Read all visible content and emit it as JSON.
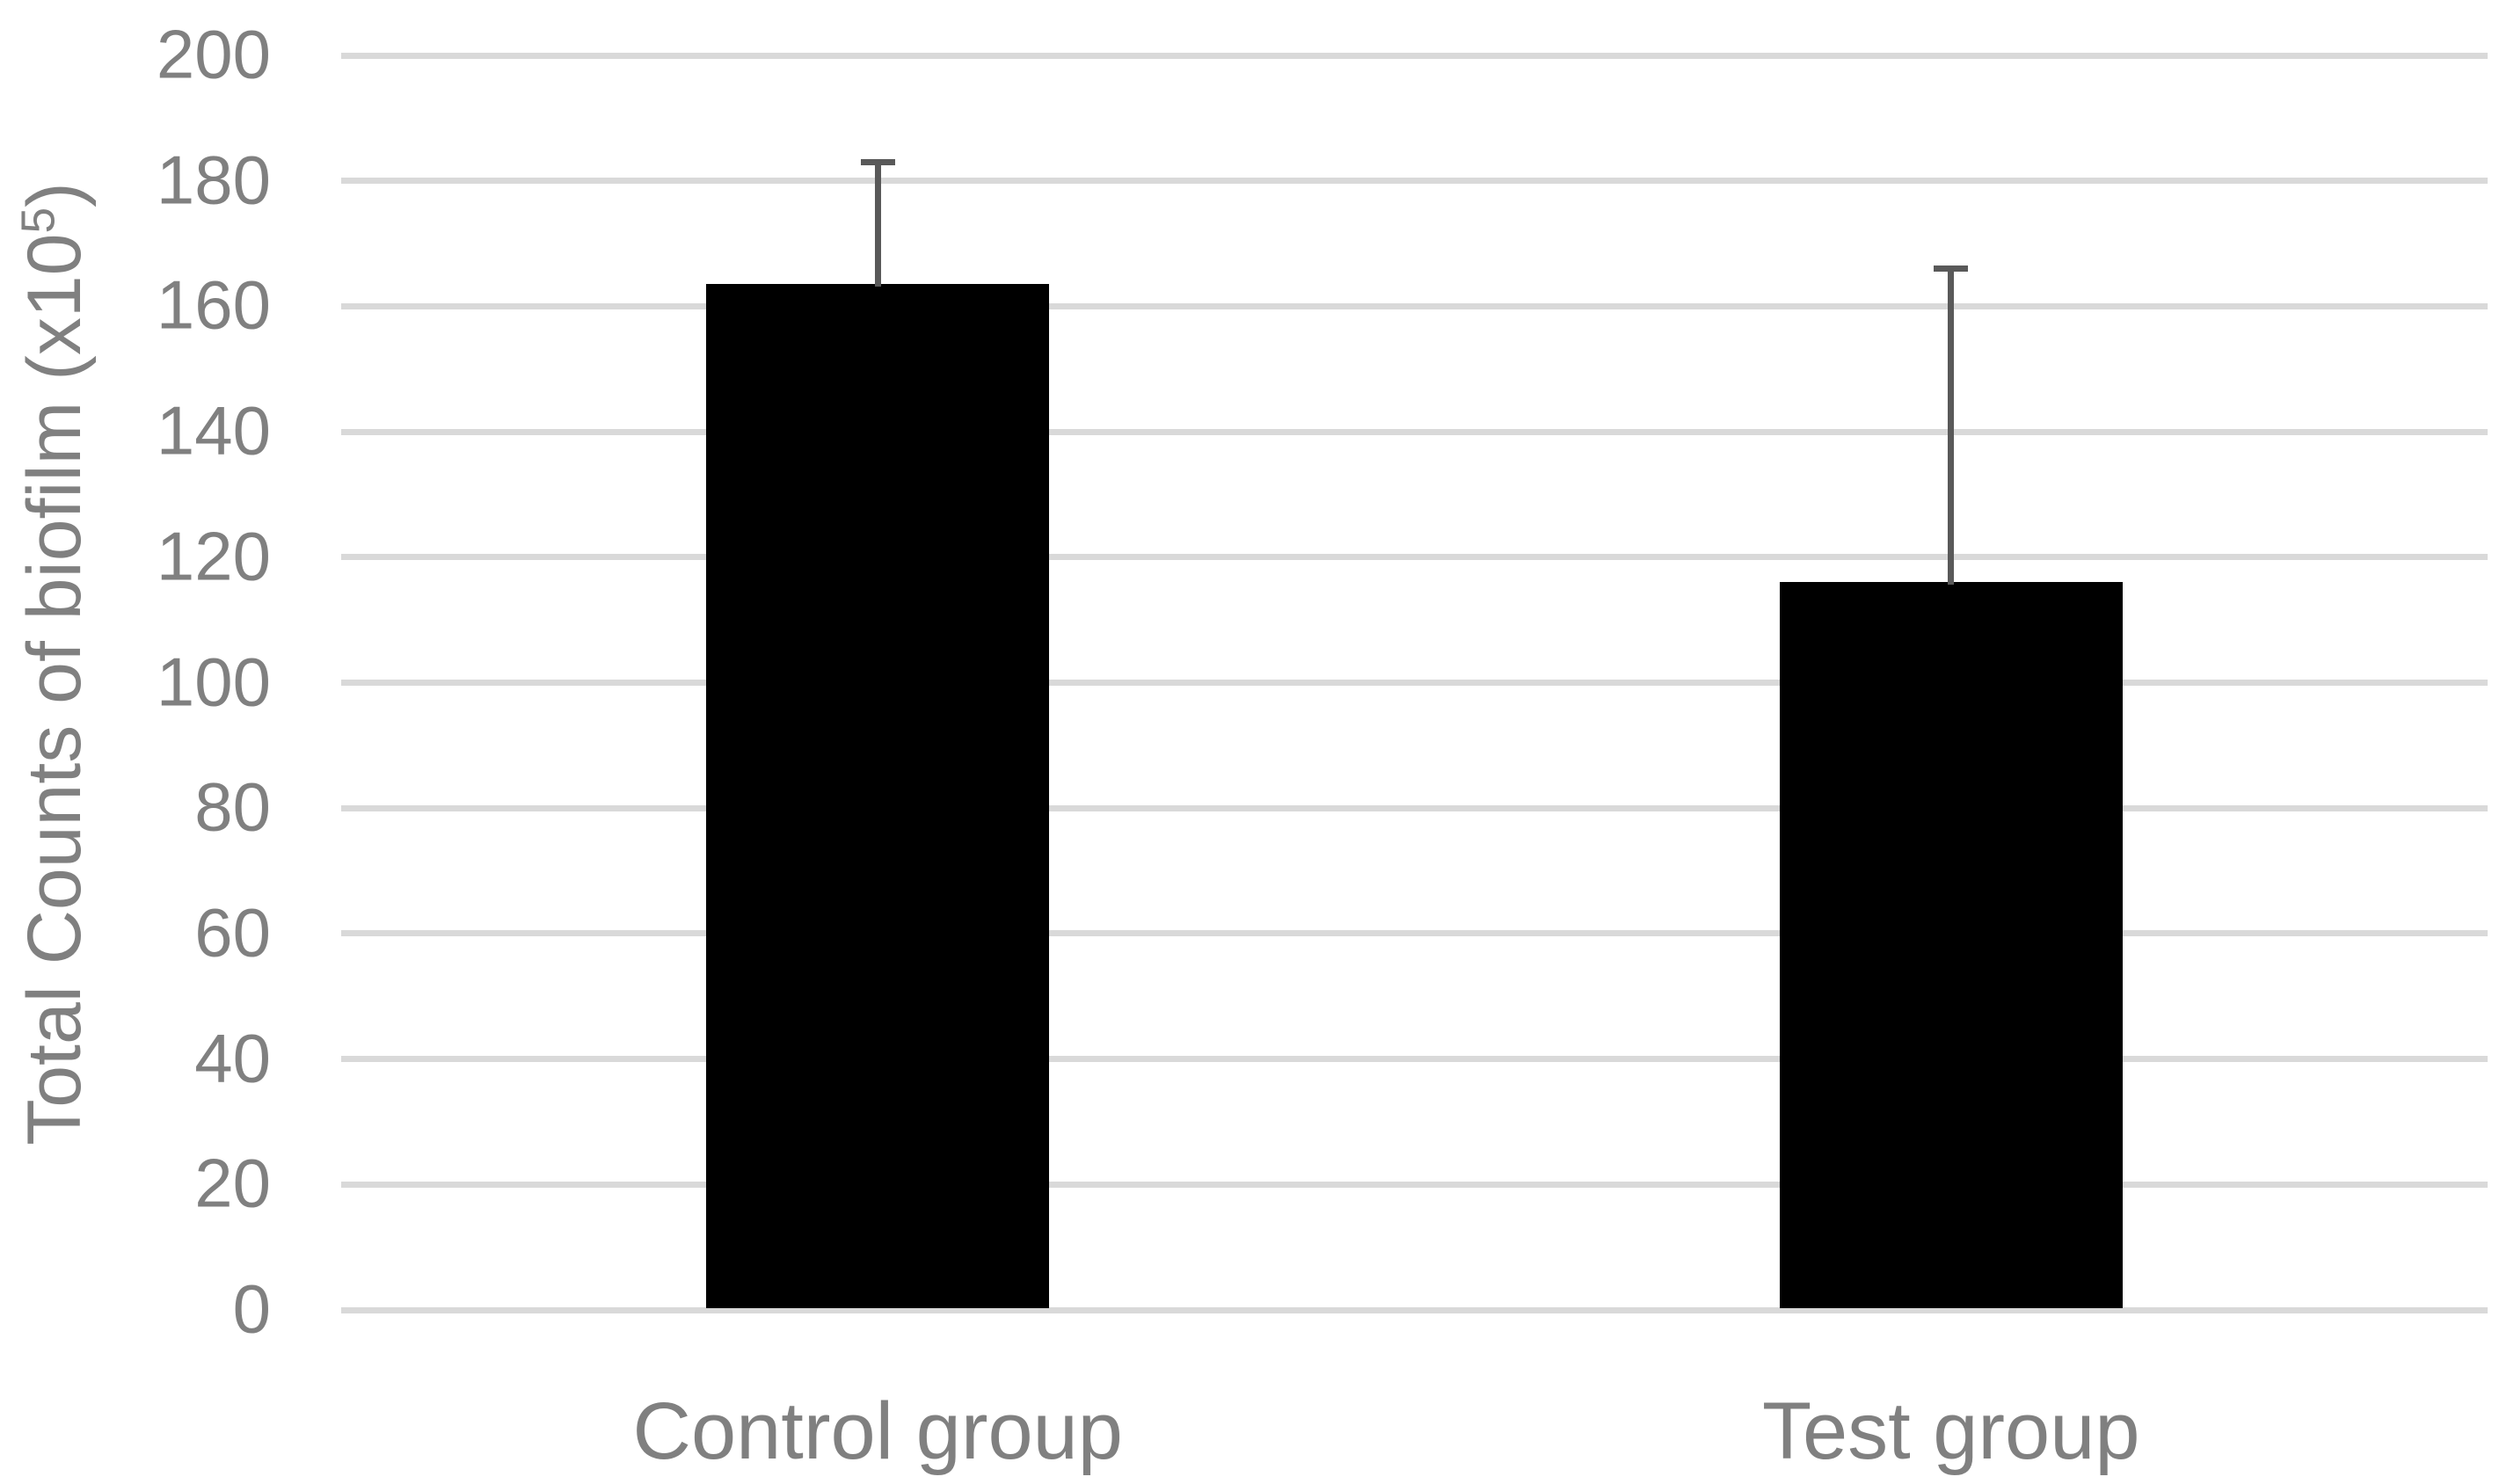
{
  "chart_data": {
    "type": "bar",
    "title": "",
    "categories": [
      "Control group",
      "Test group"
    ],
    "series": [
      {
        "name": "Total Counts of biofilm",
        "values": [
          163.5,
          116
        ],
        "error_plus": [
          19,
          49.5
        ],
        "error_bar_tops": [
          182.5,
          165.5
        ]
      }
    ],
    "xlabel": "",
    "ylabel": "Total Counts of biofilm (x10⁵)",
    "ylabel_parts": {
      "prefix": "Total Counts of biofilm (x10",
      "superscript": "5",
      "suffix": ")"
    },
    "yticks": [
      0,
      20,
      40,
      60,
      80,
      100,
      120,
      140,
      160,
      180,
      200
    ],
    "ylim": [
      0,
      200
    ],
    "grid": "horizontal gridlines on",
    "legend_position": "none",
    "colors": {
      "bar": "#000000",
      "error_bar": "#595959",
      "gridline": "#d9d9d9",
      "axis_line": "#d9d9d9",
      "text": "#808080",
      "background": "#ffffff"
    }
  }
}
